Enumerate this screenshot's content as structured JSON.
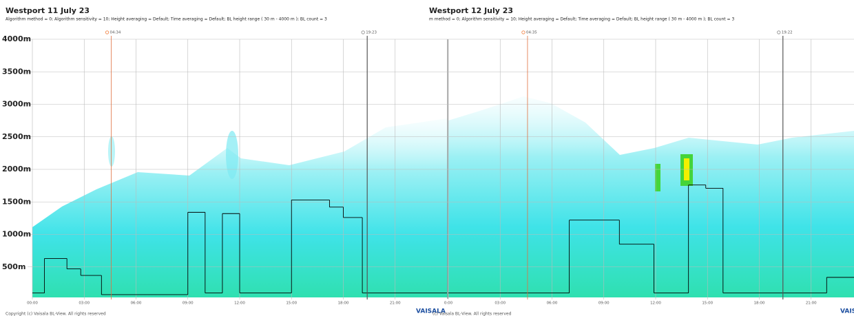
{
  "chart_data": [
    {
      "type": "line",
      "title": "Westport 11 July 23",
      "subtitle": "Algorithm method = 0; Algorithm sensitivity = 10; Height averaging = Default; Time averaging = Default; BL height range ( 30 m - 4000 m ); BL count = 3",
      "xlim": [
        0,
        24
      ],
      "xticks": [
        {
          "value": 0,
          "label": "00:00"
        },
        {
          "value": 3,
          "label": "03:00"
        },
        {
          "value": 6,
          "label": "06:00"
        },
        {
          "value": 9,
          "label": "09:00"
        },
        {
          "value": 12,
          "label": "12:00"
        },
        {
          "value": 15,
          "label": "15:00"
        },
        {
          "value": 18,
          "label": "18:00"
        },
        {
          "value": 21,
          "label": "21:00"
        }
      ],
      "ylim": [
        0,
        4000
      ],
      "yticks": [
        {
          "value": 500,
          "label": "500m"
        },
        {
          "value": 1000,
          "label": "1000m"
        },
        {
          "value": 1500,
          "label": "1500m"
        },
        {
          "value": 2000,
          "label": "2000m"
        },
        {
          "value": 2500,
          "label": "2500m"
        },
        {
          "value": 3000,
          "label": "3000m"
        },
        {
          "value": 3500,
          "label": "3500m"
        },
        {
          "value": 4000,
          "label": "4000m"
        }
      ],
      "grid": true,
      "x": [
        0,
        0.7,
        2.0,
        2.8,
        4.0,
        9.0,
        10.0,
        11.0,
        12.0,
        15.0,
        17.2,
        18.0,
        19.1
      ],
      "values": [
        100,
        630,
        470,
        370,
        75,
        1340,
        100,
        1320,
        100,
        1530,
        1420,
        1260,
        100
      ],
      "color": "#000000",
      "sunrise": {
        "value": 4.567,
        "label": "04:34"
      },
      "sunset": {
        "value": 19.383,
        "label": "19:23"
      },
      "footer": "Copyright (c) Vaisala BL-View. All rights reserved",
      "logo": "VAISALA"
    },
    {
      "type": "line",
      "title": "Westport 12 July 23",
      "subtitle": "m method = 0; Algorithm sensitivity = 10; Height averaging = Default; Time averaging = Default; BL height range ( 30 m - 4000 m ); BL count = 3",
      "xlim": [
        0,
        24
      ],
      "xticks": [
        {
          "value": 0,
          "label": "0:00"
        },
        {
          "value": 3,
          "label": "03:00"
        },
        {
          "value": 6,
          "label": "06:00"
        },
        {
          "value": 9,
          "label": "09:00"
        },
        {
          "value": 12,
          "label": "12:00"
        },
        {
          "value": 15,
          "label": "15:00"
        },
        {
          "value": 18,
          "label": "18:00"
        },
        {
          "value": 21,
          "label": "21:00"
        }
      ],
      "ylim": [
        0,
        4000
      ],
      "grid": true,
      "x": [
        0,
        7.0,
        9.9,
        11.9,
        13.9,
        14.9,
        15.9,
        21.9
      ],
      "values": [
        100,
        1220,
        850,
        100,
        1760,
        1710,
        100,
        340
      ],
      "color": "#000000",
      "sunrise": {
        "value": 4.583,
        "label": "04:35"
      },
      "sunset": {
        "value": 19.367,
        "label": "19:22"
      },
      "footer": "(c) Vaisala BL-View. All rights reserved",
      "logo": "VAISALA"
    }
  ]
}
